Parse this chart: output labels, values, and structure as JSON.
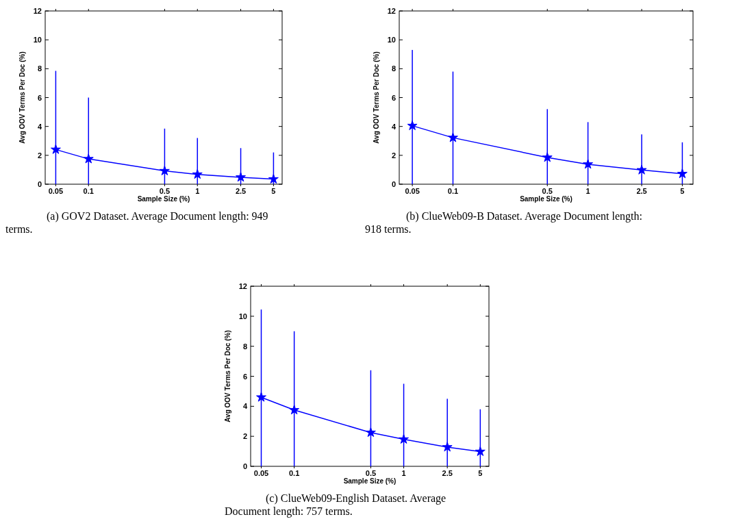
{
  "chart_data": [
    {
      "type": "line",
      "xlabel": "Sample Size (%)",
      "ylabel": "Avg OOV Terms Per Doc (%)",
      "x": [
        0.05,
        0.1,
        0.5,
        1,
        2.5,
        5
      ],
      "log": "x",
      "xlim": [
        0.04,
        6
      ],
      "xticks": [
        0.05,
        0.1,
        0.5,
        1,
        2.5,
        5
      ],
      "ylim": [
        0,
        12
      ],
      "yticks": [
        0,
        2,
        4,
        6,
        8,
        10,
        12
      ],
      "grid": false,
      "marker": "star",
      "line_style": "solid",
      "series": [
        {
          "color": "#0000ff",
          "values": [
            2.4,
            1.75,
            0.92,
            0.68,
            0.48,
            0.35
          ],
          "errors": [
            [
              0,
              7.85
            ],
            [
              0,
              6.0
            ],
            [
              0,
              3.85
            ],
            [
              0,
              3.2
            ],
            [
              0,
              2.5
            ],
            [
              0,
              2.2
            ]
          ]
        }
      ],
      "annotations": [
        "(a) GOV2 Dataset. Average Document length: 949 terms."
      ]
    },
    {
      "type": "line",
      "xlabel": "Sample Size (%)",
      "ylabel": "Avg OOV Terms Per Doc (%)",
      "x": [
        0.05,
        0.1,
        0.5,
        1,
        2.5,
        5
      ],
      "log": "x",
      "xlim": [
        0.04,
        6
      ],
      "xticks": [
        0.05,
        0.1,
        0.5,
        1,
        2.5,
        5
      ],
      "ylim": [
        0,
        12
      ],
      "yticks": [
        0,
        2,
        4,
        6,
        8,
        10,
        12
      ],
      "grid": false,
      "marker": "star",
      "line_style": "solid",
      "series": [
        {
          "color": "#0000ff",
          "values": [
            4.05,
            3.22,
            1.85,
            1.38,
            0.98,
            0.72
          ],
          "errors": [
            [
              0,
              9.3
            ],
            [
              0,
              7.8
            ],
            [
              0,
              5.2
            ],
            [
              0,
              4.3
            ],
            [
              0,
              3.45
            ],
            [
              0,
              2.9
            ]
          ]
        }
      ],
      "annotations": [
        "(b) ClueWeb09-B Dataset. Average Document length: 918 terms."
      ]
    },
    {
      "type": "line",
      "xlabel": "Sample Size (%)",
      "ylabel": "Avg OOV Terms Per Doc (%)",
      "x": [
        0.05,
        0.1,
        0.5,
        1,
        2.5,
        5
      ],
      "log": "x",
      "xlim": [
        0.04,
        6
      ],
      "xticks": [
        0.05,
        0.1,
        0.5,
        1,
        2.5,
        5
      ],
      "ylim": [
        0,
        12
      ],
      "yticks": [
        0,
        2,
        4,
        6,
        8,
        10,
        12
      ],
      "grid": false,
      "marker": "star",
      "line_style": "solid",
      "series": [
        {
          "color": "#0000ff",
          "values": [
            4.6,
            3.75,
            2.25,
            1.8,
            1.28,
            0.98
          ],
          "errors": [
            [
              0,
              10.45
            ],
            [
              0,
              9.0
            ],
            [
              0,
              6.4
            ],
            [
              0,
              5.5
            ],
            [
              0,
              4.5
            ],
            [
              0,
              3.8
            ]
          ]
        }
      ],
      "annotations": [
        "(c) ClueWeb09-English Dataset. Average Document length: 757 terms."
      ]
    }
  ]
}
